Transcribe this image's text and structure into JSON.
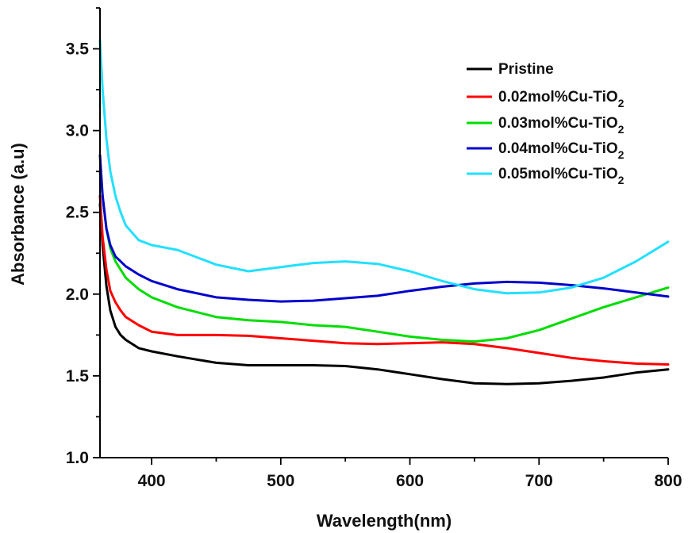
{
  "chart_data": {
    "type": "line",
    "title": "",
    "xlabel": "Wavelength(nm)",
    "ylabel": "Absorbance (a.u)",
    "xlim": [
      360,
      800
    ],
    "ylim": [
      1.0,
      3.75
    ],
    "x_ticks": [
      400,
      500,
      600,
      700,
      800
    ],
    "y_ticks": [
      1.0,
      1.5,
      2.0,
      2.5,
      3.0,
      3.5
    ],
    "x_tick_labels": [
      "400",
      "500",
      "600",
      "700",
      "800"
    ],
    "y_tick_labels": [
      "1.0",
      "1.5",
      "2.0",
      "2.5",
      "3.0",
      "3.5"
    ],
    "grid": false,
    "legend_position": "top-right",
    "series": [
      {
        "name": "Pristine",
        "name_main": "Pristine",
        "name_sub": "",
        "color": "#000000",
        "x": [
          360,
          362,
          365,
          368,
          372,
          376,
          380,
          390,
          400,
          420,
          450,
          475,
          500,
          525,
          550,
          575,
          600,
          625,
          650,
          675,
          700,
          725,
          750,
          775,
          800
        ],
        "y": [
          2.55,
          2.3,
          2.05,
          1.9,
          1.8,
          1.75,
          1.72,
          1.67,
          1.65,
          1.62,
          1.58,
          1.565,
          1.565,
          1.565,
          1.56,
          1.54,
          1.51,
          1.48,
          1.455,
          1.45,
          1.455,
          1.47,
          1.49,
          1.52,
          1.54
        ]
      },
      {
        "name": "0.02mol%Cu-TiO2",
        "name_main": "0.02mol%Cu-TiO",
        "name_sub": "2",
        "color": "#ff0000",
        "x": [
          360,
          362,
          365,
          368,
          372,
          376,
          380,
          390,
          400,
          420,
          450,
          475,
          500,
          525,
          550,
          575,
          600,
          625,
          650,
          675,
          700,
          725,
          750,
          775,
          800
        ],
        "y": [
          2.6,
          2.35,
          2.15,
          2.02,
          1.95,
          1.9,
          1.86,
          1.81,
          1.77,
          1.75,
          1.75,
          1.745,
          1.73,
          1.715,
          1.7,
          1.695,
          1.7,
          1.705,
          1.695,
          1.67,
          1.64,
          1.61,
          1.59,
          1.575,
          1.57
        ]
      },
      {
        "name": "0.03mol%Cu-TiO2",
        "name_main": "0.03mol%Cu-TiO",
        "name_sub": "2",
        "color": "#00dd00",
        "x": [
          360,
          362,
          365,
          368,
          372,
          376,
          380,
          390,
          400,
          420,
          450,
          475,
          500,
          525,
          550,
          575,
          600,
          625,
          650,
          675,
          700,
          725,
          750,
          775,
          800
        ],
        "y": [
          2.75,
          2.6,
          2.4,
          2.28,
          2.2,
          2.15,
          2.1,
          2.03,
          1.98,
          1.92,
          1.86,
          1.84,
          1.83,
          1.81,
          1.8,
          1.77,
          1.74,
          1.72,
          1.71,
          1.73,
          1.78,
          1.85,
          1.92,
          1.98,
          2.04
        ]
      },
      {
        "name": "0.04mol%Cu-TiO2",
        "name_main": "0.04mol%Cu-TiO",
        "name_sub": "2",
        "color": "#0000cc",
        "x": [
          360,
          362,
          365,
          368,
          372,
          376,
          380,
          390,
          400,
          420,
          450,
          475,
          500,
          525,
          550,
          575,
          600,
          625,
          650,
          675,
          700,
          725,
          750,
          775,
          800
        ],
        "y": [
          2.85,
          2.6,
          2.4,
          2.3,
          2.23,
          2.2,
          2.17,
          2.12,
          2.08,
          2.03,
          1.98,
          1.965,
          1.955,
          1.96,
          1.975,
          1.99,
          2.02,
          2.045,
          2.065,
          2.075,
          2.07,
          2.055,
          2.035,
          2.01,
          1.985
        ]
      },
      {
        "name": "0.05mol%Cu-TiO2",
        "name_main": "0.05mol%Cu-TiO",
        "name_sub": "2",
        "color": "#22e0ff",
        "x": [
          360,
          362,
          365,
          368,
          372,
          376,
          380,
          390,
          400,
          420,
          450,
          475,
          500,
          525,
          550,
          575,
          600,
          625,
          650,
          675,
          700,
          725,
          750,
          775,
          800
        ],
        "y": [
          3.55,
          3.25,
          2.95,
          2.75,
          2.6,
          2.5,
          2.42,
          2.33,
          2.3,
          2.27,
          2.18,
          2.14,
          2.165,
          2.19,
          2.2,
          2.185,
          2.14,
          2.08,
          2.03,
          2.005,
          2.01,
          2.04,
          2.1,
          2.2,
          2.32
        ]
      }
    ]
  }
}
